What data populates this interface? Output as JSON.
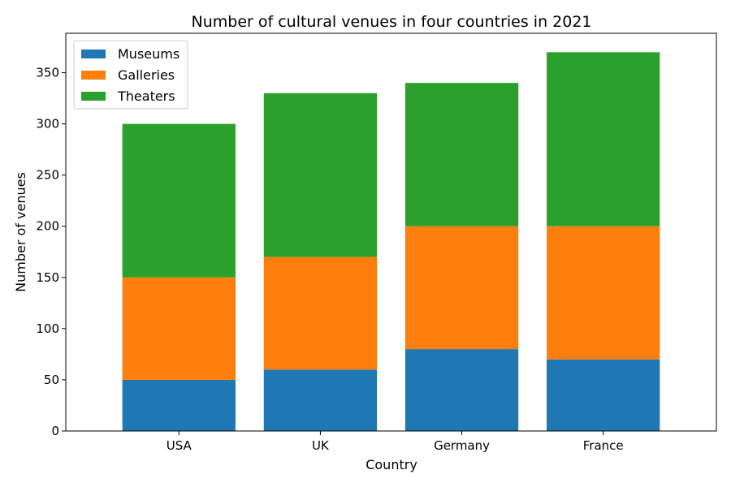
{
  "chart_data": {
    "type": "bar",
    "stacked": true,
    "title": "Number of cultural venues in four countries in 2021",
    "xlabel": "Country",
    "ylabel": "Number of venues",
    "categories": [
      "USA",
      "UK",
      "Germany",
      "France"
    ],
    "series": [
      {
        "name": "Museums",
        "color": "#1f77b4",
        "values": [
          50,
          60,
          80,
          70
        ]
      },
      {
        "name": "Galleries",
        "color": "#ff7f0e",
        "values": [
          100,
          110,
          120,
          130
        ]
      },
      {
        "name": "Theaters",
        "color": "#2ca02c",
        "values": [
          150,
          160,
          140,
          170
        ]
      }
    ],
    "ylim": [
      0,
      388.5
    ],
    "yticks": [
      "0",
      "50",
      "100",
      "150",
      "200",
      "250",
      "300",
      "350"
    ],
    "grid": false,
    "legend_position": "top-left"
  }
}
